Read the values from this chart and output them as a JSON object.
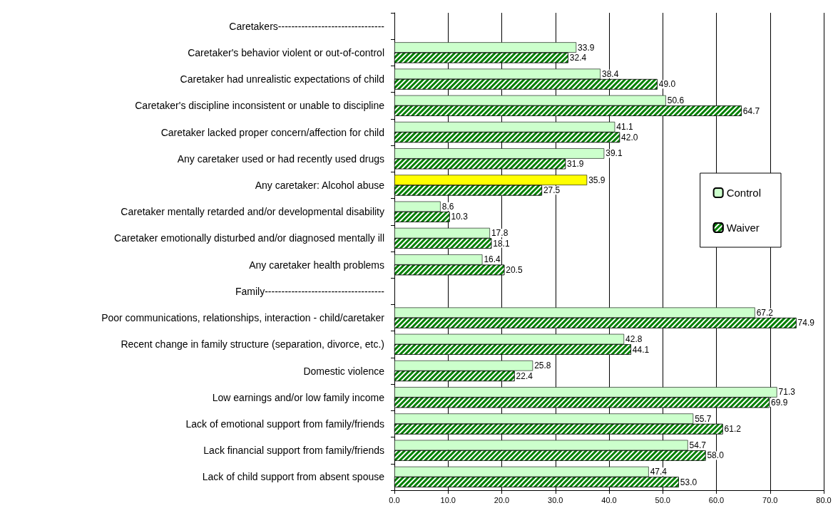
{
  "chart_data": {
    "type": "bar",
    "orientation": "horizontal",
    "categories": [
      "Caretakers--------------------------------",
      "Caretaker's behavior violent or out-of-control",
      "Caretaker had unrealistic expectations of child",
      "Caretaker's discipline inconsistent or unable to discipline",
      "Caretaker lacked proper concern/affection for child",
      "Any caretaker used or had recently used drugs",
      "Any caretaker: Alcohol abuse",
      "Caretaker mentally retarded and/or developmental disability",
      "Caretaker emotionally disturbed and/or diagnosed mentally ill",
      "Any caretaker health problems",
      "Family------------------------------------",
      "Poor communications, relationships, interaction - child/caretaker",
      "Recent change in family structure (separation, divorce, etc.)",
      "Domestic violence",
      "Low earnings and/or low family income",
      "Lack of emotional support from family/friends",
      "Lack financial support from family/friends",
      "Lack of child support from absent spouse"
    ],
    "series": [
      {
        "name": "Control",
        "color": "#ccffcc",
        "colors": [
          null,
          "#ccffcc",
          "#ccffcc",
          "#ccffcc",
          "#ccffcc",
          "#ccffcc",
          "#ffff00",
          "#ccffcc",
          "#ccffcc",
          "#ccffcc",
          null,
          "#ccffcc",
          "#ccffcc",
          "#ccffcc",
          "#ccffcc",
          "#ccffcc",
          "#ccffcc",
          "#ccffcc"
        ],
        "values": [
          null,
          33.9,
          38.4,
          50.6,
          41.1,
          39.1,
          35.9,
          8.6,
          17.8,
          16.4,
          null,
          67.2,
          42.8,
          25.8,
          71.3,
          55.7,
          54.7,
          47.4
        ],
        "value_labels": [
          null,
          "33.9",
          "38.4",
          "50.6",
          "41.1",
          "39.1",
          "35.9",
          "8.6",
          "17.8",
          "16.4",
          null,
          "67.2",
          "42.8",
          "25.8",
          "71.3",
          "55.7",
          "54.7",
          "47.4"
        ]
      },
      {
        "name": "Waiver",
        "color": "#008000",
        "values": [
          null,
          32.4,
          49.0,
          64.7,
          42.0,
          31.9,
          27.5,
          10.3,
          18.1,
          20.5,
          null,
          74.9,
          44.1,
          22.4,
          69.9,
          61.2,
          58.0,
          53.0
        ],
        "value_labels": [
          null,
          "32.4",
          "49.0",
          "64.7",
          "42.0",
          "31.9",
          "27.5",
          "10.3",
          "18.1",
          "20.5",
          null,
          "74.9",
          "44.1",
          "22.4",
          "69.9",
          "61.2",
          "58.0",
          "53.0"
        ]
      }
    ],
    "xlim": [
      0,
      80
    ],
    "xticks": [
      {
        "value": 0,
        "label": "0.0"
      },
      {
        "value": 10,
        "label": "10.0"
      },
      {
        "value": 20,
        "label": "20.0"
      },
      {
        "value": 30,
        "label": "30.0"
      },
      {
        "value": 40,
        "label": "40.0"
      },
      {
        "value": 50,
        "label": "50.0"
      },
      {
        "value": 60,
        "label": "60.0"
      },
      {
        "value": 70,
        "label": "70.0"
      },
      {
        "value": 80,
        "label": "80.0"
      }
    ],
    "grid": "x",
    "legend": "right"
  }
}
